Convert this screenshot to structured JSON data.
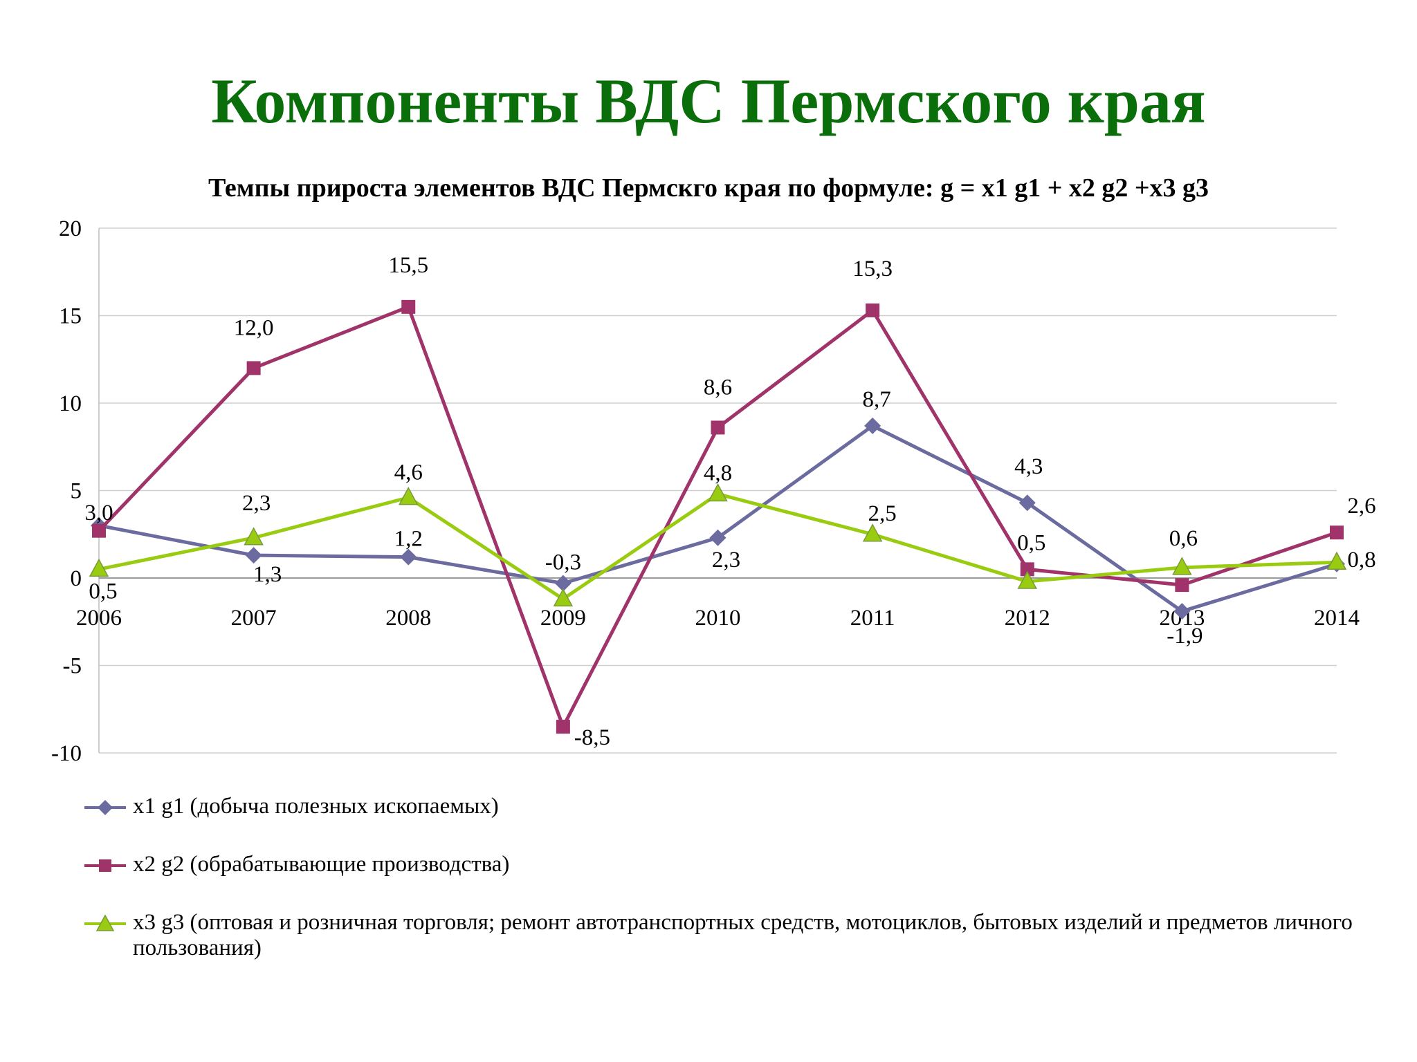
{
  "slide": {
    "title": "Компоненты ВДС Пермского края"
  },
  "chart_data": {
    "type": "line",
    "title": "Темпы прироста элементов ВДС Пермскго края по формуле:  g = x1 g1 + x2 g2 +x3 g3",
    "xlabel": "",
    "ylabel": "",
    "categories": [
      "2006",
      "2007",
      "2008",
      "2009",
      "2010",
      "2011",
      "2012",
      "2013",
      "2014"
    ],
    "ylim": [
      -10,
      20
    ],
    "yticks": [
      "-10",
      "-5",
      "0",
      "5",
      "10",
      "15",
      "20"
    ],
    "grid": true,
    "legend_position": "bottom",
    "series": [
      {
        "name": "x1 g1 (добыча полезных ископаемых)",
        "marker": "diamond",
        "color": "#6b6b9f",
        "values": [
          3.0,
          1.3,
          1.2,
          -0.3,
          2.3,
          8.7,
          4.3,
          -1.9,
          0.8
        ],
        "labels": [
          "3,0",
          "1,3",
          "1,2",
          "-0,3",
          "2,3",
          "8,7",
          "4,3",
          "-1,9",
          "0,8"
        ]
      },
      {
        "name": "x2 g2 (обрабатывающие производства)",
        "marker": "square",
        "color": "#a0336a",
        "values": [
          2.7,
          12.0,
          15.5,
          -8.5,
          8.6,
          15.3,
          0.5,
          -0.4,
          2.6
        ],
        "labels": [
          "",
          "12,0",
          "15,5",
          "-8,5",
          "8,6",
          "15,3",
          "0,5",
          "",
          "2,6"
        ]
      },
      {
        "name": "x3 g3 (оптовая и розничная торговля; ремонт  автотранспортных средств, мотоциклов, бытовых изделий и  предметов личного пользования)",
        "marker": "triangle",
        "color": "#99cc11",
        "values": [
          0.5,
          2.3,
          4.6,
          -1.2,
          4.8,
          2.5,
          -0.2,
          0.6,
          0.9
        ],
        "labels": [
          "0,5",
          "2,3",
          "4,6",
          "",
          "4,8",
          "2,5",
          "",
          "0,6",
          ""
        ]
      }
    ]
  }
}
